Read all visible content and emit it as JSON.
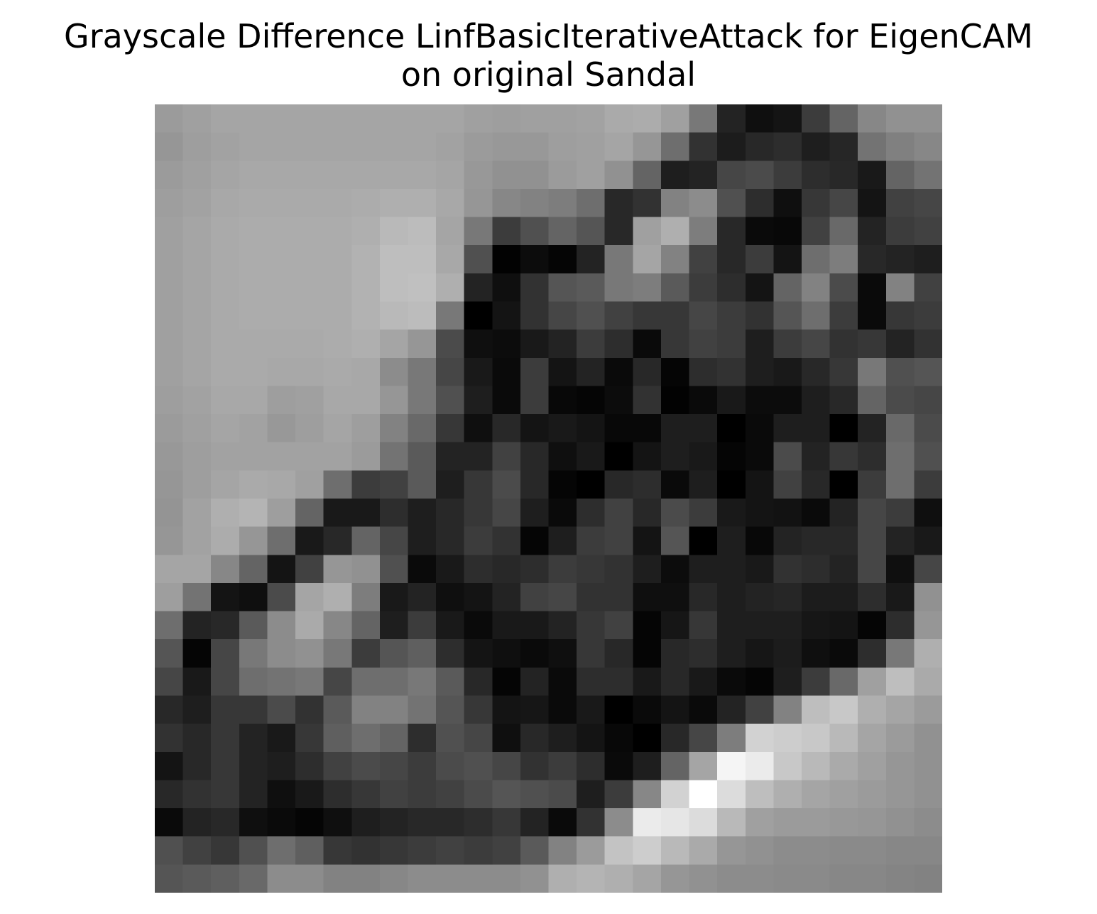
{
  "title_line1": "Grayscale Difference LinfBasicIterativeAttack for EigenCAM",
  "title_line2": "on original Sandal",
  "chart_data": {
    "type": "heatmap",
    "colormap": "gray",
    "axes_visible": false,
    "rows": 28,
    "cols": 28,
    "value_range": [
      0,
      255
    ],
    "values": [
      [
        155,
        160,
        165,
        165,
        165,
        165,
        165,
        165,
        165,
        165,
        165,
        160,
        158,
        160,
        160,
        162,
        170,
        172,
        160,
        120,
        35,
        15,
        20,
        60,
        100,
        135,
        145,
        145
      ],
      [
        150,
        158,
        162,
        165,
        165,
        165,
        165,
        165,
        165,
        165,
        162,
        155,
        152,
        152,
        158,
        160,
        165,
        150,
        110,
        50,
        28,
        40,
        45,
        30,
        38,
        115,
        128,
        135
      ],
      [
        155,
        160,
        165,
        168,
        168,
        168,
        168,
        168,
        168,
        168,
        165,
        152,
        145,
        145,
        155,
        160,
        145,
        100,
        30,
        35,
        70,
        75,
        60,
        45,
        40,
        25,
        100,
        115
      ],
      [
        158,
        162,
        168,
        170,
        170,
        170,
        170,
        172,
        175,
        175,
        168,
        150,
        135,
        130,
        125,
        110,
        40,
        50,
        130,
        140,
        80,
        45,
        15,
        55,
        70,
        20,
        65,
        70
      ],
      [
        160,
        165,
        170,
        172,
        172,
        172,
        172,
        175,
        185,
        188,
        165,
        120,
        60,
        80,
        100,
        85,
        40,
        160,
        175,
        125,
        40,
        10,
        8,
        65,
        105,
        35,
        60,
        65
      ],
      [
        160,
        165,
        170,
        172,
        172,
        172,
        172,
        178,
        190,
        190,
        168,
        80,
        2,
        12,
        5,
        35,
        120,
        165,
        130,
        65,
        40,
        60,
        20,
        110,
        125,
        40,
        35,
        30
      ],
      [
        160,
        165,
        170,
        172,
        172,
        172,
        172,
        178,
        190,
        192,
        175,
        35,
        15,
        50,
        85,
        90,
        120,
        125,
        90,
        60,
        45,
        20,
        100,
        130,
        75,
        10,
        130,
        65
      ],
      [
        160,
        165,
        170,
        172,
        172,
        172,
        172,
        178,
        185,
        188,
        120,
        0,
        20,
        50,
        70,
        80,
        65,
        55,
        55,
        70,
        60,
        50,
        85,
        110,
        60,
        10,
        55,
        60
      ],
      [
        160,
        165,
        170,
        170,
        170,
        170,
        172,
        175,
        165,
        150,
        75,
        15,
        12,
        25,
        35,
        60,
        45,
        10,
        55,
        65,
        60,
        30,
        60,
        70,
        50,
        55,
        35,
        50
      ],
      [
        160,
        165,
        170,
        170,
        168,
        168,
        170,
        168,
        140,
        120,
        70,
        25,
        10,
        60,
        20,
        35,
        10,
        40,
        5,
        45,
        50,
        30,
        25,
        40,
        55,
        120,
        80,
        85
      ],
      [
        158,
        162,
        168,
        168,
        158,
        160,
        168,
        168,
        150,
        120,
        80,
        30,
        10,
        60,
        8,
        5,
        12,
        50,
        2,
        10,
        25,
        12,
        12,
        30,
        40,
        100,
        75,
        70
      ],
      [
        155,
        160,
        165,
        162,
        152,
        158,
        165,
        158,
        130,
        105,
        55,
        15,
        40,
        20,
        25,
        20,
        8,
        8,
        30,
        30,
        0,
        10,
        30,
        30,
        0,
        35,
        105,
        75
      ],
      [
        152,
        158,
        162,
        162,
        162,
        162,
        162,
        155,
        115,
        90,
        35,
        35,
        65,
        40,
        15,
        25,
        0,
        20,
        30,
        25,
        5,
        10,
        75,
        35,
        55,
        45,
        110,
        80
      ],
      [
        150,
        158,
        165,
        170,
        168,
        160,
        110,
        60,
        65,
        90,
        30,
        55,
        75,
        40,
        5,
        0,
        40,
        45,
        10,
        30,
        0,
        20,
        65,
        40,
        0,
        60,
        110,
        60
      ],
      [
        148,
        162,
        175,
        180,
        158,
        100,
        25,
        25,
        45,
        30,
        40,
        55,
        70,
        30,
        10,
        45,
        65,
        40,
        75,
        60,
        25,
        20,
        18,
        10,
        35,
        70,
        60,
        15
      ],
      [
        150,
        162,
        172,
        150,
        110,
        25,
        40,
        100,
        70,
        30,
        40,
        60,
        50,
        5,
        30,
        60,
        65,
        20,
        85,
        0,
        30,
        8,
        35,
        40,
        40,
        70,
        35,
        25
      ],
      [
        165,
        165,
        135,
        100,
        20,
        65,
        150,
        145,
        80,
        10,
        25,
        45,
        40,
        45,
        60,
        55,
        50,
        30,
        12,
        30,
        30,
        25,
        50,
        45,
        35,
        70,
        15,
        70
      ],
      [
        158,
        115,
        20,
        15,
        75,
        165,
        175,
        125,
        25,
        35,
        15,
        20,
        35,
        65,
        70,
        50,
        50,
        15,
        15,
        40,
        30,
        35,
        38,
        28,
        28,
        45,
        25,
        145
      ],
      [
        110,
        35,
        40,
        90,
        140,
        170,
        135,
        100,
        30,
        60,
        25,
        10,
        25,
        25,
        35,
        55,
        65,
        5,
        22,
        55,
        30,
        30,
        30,
        22,
        20,
        5,
        45,
        150
      ],
      [
        85,
        5,
        70,
        120,
        140,
        145,
        120,
        60,
        85,
        95,
        45,
        20,
        15,
        10,
        15,
        55,
        40,
        5,
        40,
        45,
        30,
        22,
        28,
        15,
        10,
        45,
        120,
        175
      ],
      [
        70,
        25,
        70,
        110,
        115,
        120,
        70,
        110,
        110,
        120,
        90,
        40,
        5,
        35,
        10,
        45,
        45,
        25,
        40,
        25,
        10,
        5,
        30,
        60,
        105,
        160,
        190,
        170
      ],
      [
        40,
        30,
        55,
        55,
        75,
        50,
        90,
        130,
        130,
        115,
        85,
        55,
        20,
        22,
        10,
        25,
        0,
        10,
        20,
        10,
        35,
        65,
        130,
        190,
        200,
        175,
        165,
        155
      ],
      [
        50,
        40,
        55,
        35,
        25,
        55,
        95,
        110,
        100,
        45,
        80,
        70,
        15,
        40,
        30,
        20,
        8,
        0,
        40,
        70,
        125,
        210,
        205,
        200,
        185,
        165,
        155,
        145
      ],
      [
        20,
        40,
        55,
        35,
        30,
        45,
        65,
        75,
        70,
        60,
        75,
        80,
        70,
        50,
        60,
        45,
        10,
        30,
        100,
        165,
        245,
        235,
        200,
        185,
        170,
        160,
        150,
        145
      ],
      [
        40,
        50,
        55,
        35,
        15,
        25,
        45,
        55,
        65,
        60,
        65,
        75,
        85,
        80,
        75,
        30,
        60,
        135,
        210,
        255,
        220,
        190,
        175,
        165,
        160,
        155,
        150,
        145
      ],
      [
        10,
        35,
        40,
        15,
        10,
        5,
        15,
        30,
        35,
        40,
        40,
        45,
        55,
        35,
        10,
        50,
        140,
        235,
        230,
        220,
        185,
        160,
        155,
        155,
        152,
        150,
        145,
        140
      ],
      [
        80,
        65,
        55,
        80,
        110,
        95,
        55,
        50,
        55,
        60,
        65,
        60,
        65,
        90,
        130,
        155,
        195,
        205,
        185,
        170,
        150,
        145,
        140,
        140,
        138,
        138,
        135,
        135
      ],
      [
        85,
        90,
        95,
        105,
        140,
        140,
        130,
        130,
        135,
        140,
        140,
        140,
        140,
        145,
        175,
        180,
        175,
        165,
        150,
        145,
        140,
        140,
        138,
        138,
        135,
        135,
        132,
        130
      ]
    ]
  }
}
